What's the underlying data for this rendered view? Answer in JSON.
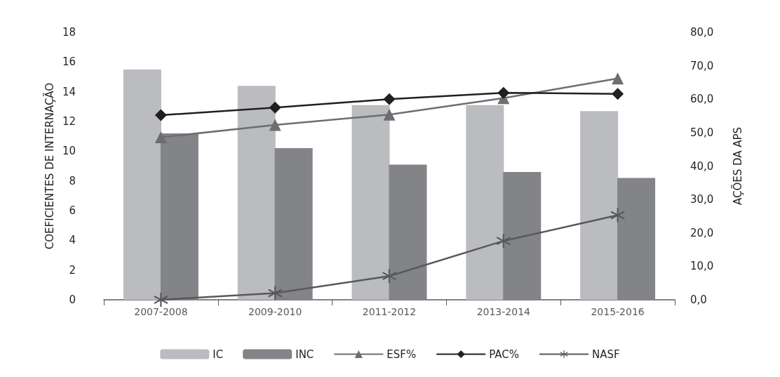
{
  "chart_data": {
    "type": "bar",
    "categories": [
      "2007-2008",
      "2009-2010",
      "2011-2012",
      "2013-2014",
      "2015-2016"
    ],
    "ylabel": "COEFICIENTES DE INTERNAÇÃO",
    "y2label": "AÇÕES DA APS",
    "ylim": [
      0,
      18
    ],
    "yticks": [
      0,
      2,
      4,
      6,
      8,
      10,
      12,
      14,
      16,
      18
    ],
    "y2lim": [
      0,
      80
    ],
    "y2ticks": [
      {
        "value": 0,
        "label": "0,0"
      },
      {
        "value": 10,
        "label": "10,0"
      },
      {
        "value": 20,
        "label": "20,0"
      },
      {
        "value": 30,
        "label": "30,0"
      },
      {
        "value": 40,
        "label": "40,0"
      },
      {
        "value": 50,
        "label": "50,0"
      },
      {
        "value": 60,
        "label": "60,0"
      },
      {
        "value": 70,
        "label": "70,0"
      },
      {
        "value": 80,
        "label": "80,0"
      }
    ],
    "grid": false,
    "legend": "bottom",
    "series": [
      {
        "name": "IC",
        "color": "#bbbcc0",
        "values": [
          15.5,
          14.4,
          13.1,
          13.1,
          12.7
        ]
      },
      {
        "name": "INC",
        "color": "#838488",
        "values": [
          11.2,
          10.2,
          9.1,
          8.6,
          8.2
        ]
      },
      {
        "name": "ESF%",
        "type": "line",
        "axis": "y2",
        "marker": "triangle",
        "color": "#6d6e71",
        "values": [
          48.6,
          52.3,
          55.4,
          60.3,
          66.2
        ]
      },
      {
        "name": "PAC%",
        "type": "line",
        "axis": "y2",
        "marker": "diamond",
        "color": "#231f20",
        "values": [
          55.2,
          57.5,
          60.0,
          61.9,
          61.6
        ]
      },
      {
        "name": "NASF",
        "type": "line",
        "axis": "y2",
        "marker": "cross",
        "color": "#58595b",
        "values": [
          0,
          2.0,
          7.1,
          17.6,
          25.3
        ]
      }
    ]
  }
}
